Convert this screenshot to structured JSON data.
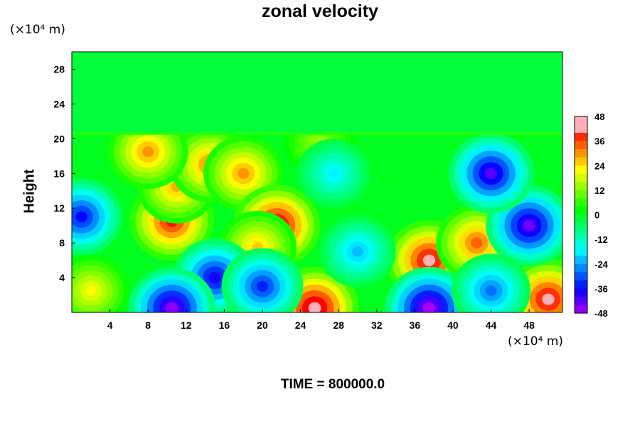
{
  "chart_data": {
    "type": "heatmap",
    "title": "zonal velocity",
    "xlabel": "",
    "ylabel": "Height",
    "x_unit_label": "(×10⁴ m)",
    "y_unit_label": "(×10⁴ m)",
    "footer": "TIME = 800000.0",
    "xlim": [
      0,
      51.5
    ],
    "ylim": [
      0,
      30
    ],
    "x_ticks": [
      4,
      8,
      12,
      16,
      20,
      24,
      28,
      32,
      36,
      40,
      44,
      48
    ],
    "y_ticks": [
      4,
      8,
      12,
      16,
      20,
      24,
      28
    ],
    "colorbar": {
      "range": [
        -48,
        48
      ],
      "ticks": [
        48,
        36,
        24,
        12,
        0,
        -12,
        -24,
        -36,
        -48
      ]
    },
    "background_value": 0,
    "upper_layer": {
      "y_from": 20.5,
      "y_to": 30,
      "value": -2
    },
    "features": [
      {
        "x": 10.5,
        "y": 10.5,
        "value": 40
      },
      {
        "x": 11,
        "y": 14.5,
        "value": 28
      },
      {
        "x": 14.5,
        "y": 17,
        "value": 32
      },
      {
        "x": 8,
        "y": 18.5,
        "value": 30
      },
      {
        "x": 18,
        "y": 16,
        "value": 30
      },
      {
        "x": 21.5,
        "y": 10,
        "value": 46
      },
      {
        "x": 19.5,
        "y": 7.5,
        "value": 26
      },
      {
        "x": 37.5,
        "y": 6,
        "value": 44
      },
      {
        "x": 42.5,
        "y": 8,
        "value": 34
      },
      {
        "x": 25.5,
        "y": 0.5,
        "value": 48
      },
      {
        "x": 50,
        "y": 1.5,
        "value": 44
      },
      {
        "x": 2,
        "y": 2.5,
        "value": 22
      },
      {
        "x": 26,
        "y": 19.5,
        "value": 14
      },
      {
        "x": 1,
        "y": 11,
        "value": -36
      },
      {
        "x": 48,
        "y": 10,
        "value": -44
      },
      {
        "x": 44,
        "y": 16,
        "value": -42
      },
      {
        "x": 15,
        "y": 4,
        "value": -38
      },
      {
        "x": 20,
        "y": 3,
        "value": -34
      },
      {
        "x": 10.5,
        "y": 0.5,
        "value": -46
      },
      {
        "x": 37.5,
        "y": 0.5,
        "value": -48
      },
      {
        "x": 27.5,
        "y": 16,
        "value": -18
      },
      {
        "x": 30,
        "y": 7,
        "value": -22
      },
      {
        "x": 44,
        "y": 2.5,
        "value": -28
      }
    ]
  }
}
